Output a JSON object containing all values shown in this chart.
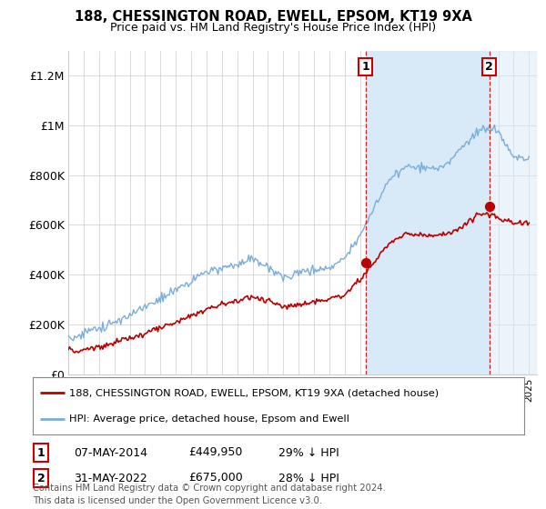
{
  "title": "188, CHESSINGTON ROAD, EWELL, EPSOM, KT19 9XA",
  "subtitle": "Price paid vs. HM Land Registry's House Price Index (HPI)",
  "xlim_start": 1995.0,
  "xlim_end": 2025.5,
  "ylim": [
    0,
    1300000
  ],
  "yticks": [
    0,
    200000,
    400000,
    600000,
    800000,
    1000000,
    1200000
  ],
  "ytick_labels": [
    "£0",
    "£200K",
    "£400K",
    "£600K",
    "£800K",
    "£1M",
    "£1.2M"
  ],
  "sale1_x": 2014.35,
  "sale1_y": 449950,
  "sale1_label": "1",
  "sale2_x": 2022.42,
  "sale2_y": 675000,
  "sale2_label": "2",
  "vline1_x": 2014.35,
  "vline2_x": 2022.42,
  "red_color": "#bb0000",
  "blue_color": "#7aadda",
  "blue_fill_color": "#d8eaf7",
  "vline_color": "#cc0000",
  "legend_entry1": "188, CHESSINGTON ROAD, EWELL, EPSOM, KT19 9XA (detached house)",
  "legend_entry2": "HPI: Average price, detached house, Epsom and Ewell",
  "table_row1": [
    "1",
    "07-MAY-2014",
    "£449,950",
    "29% ↓ HPI"
  ],
  "table_row2": [
    "2",
    "31-MAY-2022",
    "£675,000",
    "28% ↓ HPI"
  ],
  "footer": "Contains HM Land Registry data © Crown copyright and database right 2024.\nThis data is licensed under the Open Government Licence v3.0.",
  "background_color": "#ffffff",
  "grid_color": "#cccccc",
  "hpi_knots": [
    1995,
    1996,
    1997,
    1998,
    1999,
    2000,
    2001,
    2002,
    2003,
    2004,
    2005,
    2006,
    2007,
    2008,
    2009,
    2010,
    2011,
    2012,
    2013,
    2014,
    2015,
    2016,
    2017,
    2018,
    2019,
    2020,
    2021,
    2022,
    2023,
    2024,
    2025
  ],
  "hpi_vals": [
    145000,
    165000,
    185000,
    210000,
    240000,
    275000,
    300000,
    340000,
    370000,
    410000,
    430000,
    440000,
    460000,
    430000,
    390000,
    405000,
    420000,
    430000,
    470000,
    560000,
    680000,
    790000,
    840000,
    830000,
    830000,
    860000,
    940000,
    1000000,
    980000,
    870000,
    860000
  ],
  "price_knots": [
    1995,
    1996,
    1997,
    1998,
    1999,
    2000,
    2001,
    2002,
    2003,
    2004,
    2005,
    2006,
    2007,
    2008,
    2009,
    2010,
    2011,
    2012,
    2013,
    2014,
    2015,
    2016,
    2017,
    2018,
    2019,
    2020,
    2021,
    2022,
    2023,
    2024,
    2025
  ],
  "price_vals": [
    88000,
    95000,
    108000,
    125000,
    145000,
    165000,
    185000,
    210000,
    235000,
    260000,
    280000,
    295000,
    315000,
    295000,
    270000,
    280000,
    290000,
    300000,
    320000,
    380000,
    460000,
    530000,
    565000,
    560000,
    555000,
    570000,
    610000,
    650000,
    630000,
    610000,
    605000
  ],
  "noise_hpi_std": 9000,
  "noise_price_std": 6000,
  "noise_seed": 17
}
